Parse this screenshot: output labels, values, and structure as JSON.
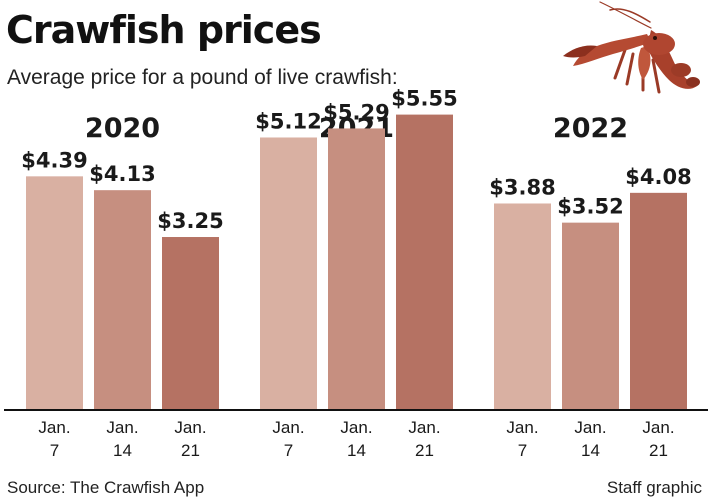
{
  "header": {
    "title": "Crawfish prices",
    "subtitle": "Average price for a pound of live crawfish:"
  },
  "footer": {
    "source": "Source: The Crawfish App",
    "credit": "Staff graphic"
  },
  "image": {
    "icon": "crawfish-illustration"
  },
  "colors": {
    "bar_shades": [
      "#d9b0a2",
      "#c68f80",
      "#b57263"
    ],
    "axis": "#111111",
    "text": "#1a1a1a"
  },
  "chart_data": {
    "type": "bar",
    "title": "Crawfish prices",
    "subtitle": "Average price for a pound of live crawfish:",
    "ylim": [
      0,
      6.2
    ],
    "grid": false,
    "legend": "none",
    "groups": [
      {
        "label": "2020",
        "bars": [
          {
            "date_line1": "Jan.",
            "date_line2": "7",
            "value": 4.39,
            "label": "$4.39"
          },
          {
            "date_line1": "Jan.",
            "date_line2": "14",
            "value": 4.13,
            "label": "$4.13"
          },
          {
            "date_line1": "Jan.",
            "date_line2": "21",
            "value": 3.25,
            "label": "$3.25"
          }
        ]
      },
      {
        "label": "2021",
        "bars": [
          {
            "date_line1": "Jan.",
            "date_line2": "7",
            "value": 5.12,
            "label": "$5.12"
          },
          {
            "date_line1": "Jan.",
            "date_line2": "14",
            "value": 5.29,
            "label": "$5.29"
          },
          {
            "date_line1": "Jan.",
            "date_line2": "21",
            "value": 5.55,
            "label": "$5.55"
          }
        ]
      },
      {
        "label": "2022",
        "bars": [
          {
            "date_line1": "Jan.",
            "date_line2": "7",
            "value": 3.88,
            "label": "$3.88"
          },
          {
            "date_line1": "Jan.",
            "date_line2": "14",
            "value": 3.52,
            "label": "$3.52"
          },
          {
            "date_line1": "Jan.",
            "date_line2": "21",
            "value": 4.08,
            "label": "$4.08"
          }
        ]
      }
    ]
  }
}
